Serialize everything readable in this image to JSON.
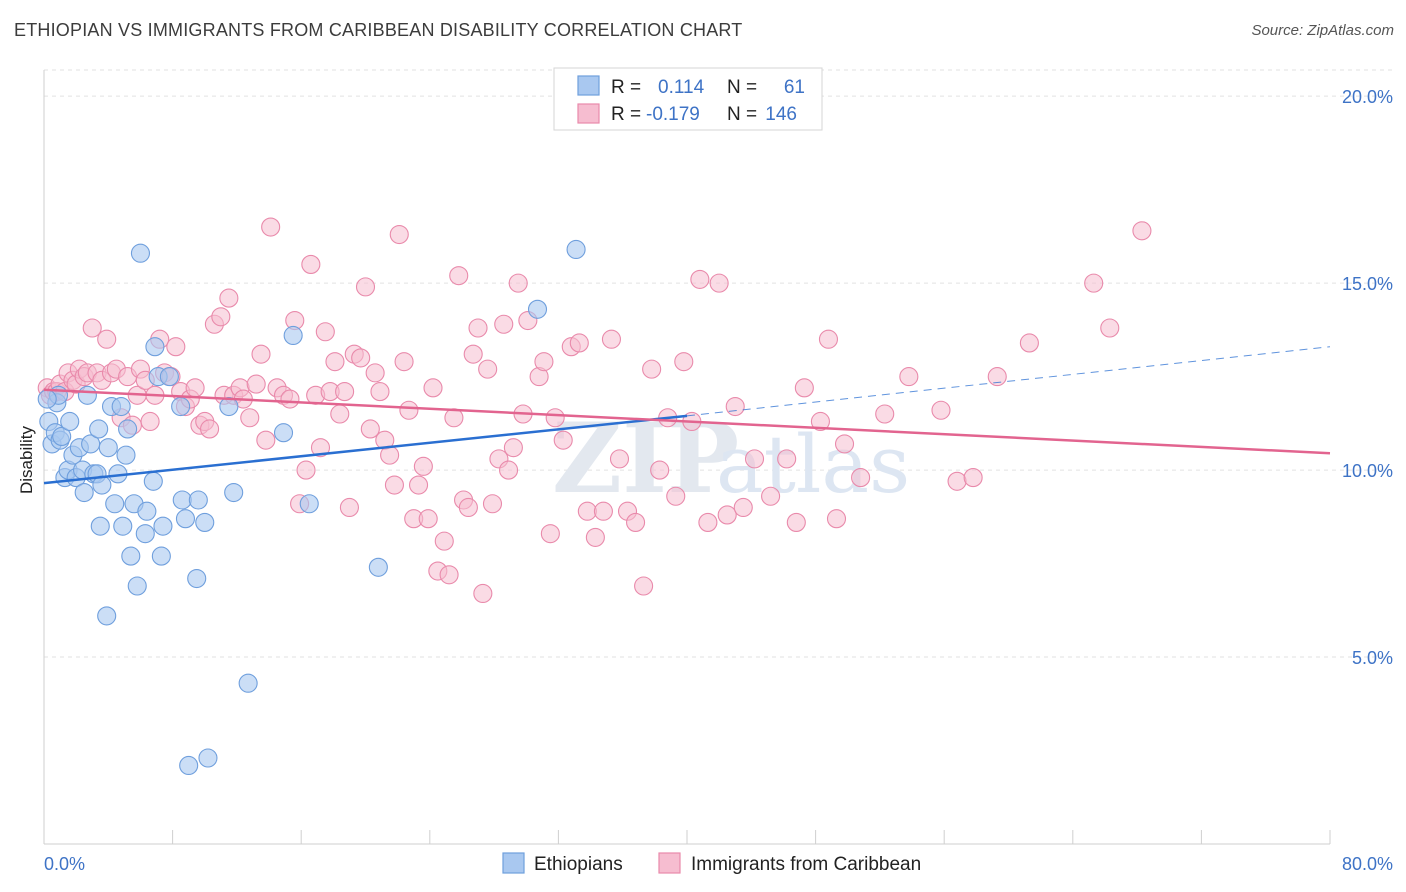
{
  "title": "ETHIOPIAN VS IMMIGRANTS FROM CARIBBEAN DISABILITY CORRELATION CHART",
  "source": "Source: ZipAtlas.com",
  "watermark": {
    "part1": "ZIP",
    "part2": "atlas"
  },
  "colors": {
    "ethiopians_fill": "#a9c8f0",
    "ethiopians_stroke": "#6f9fdd",
    "ethiopians_line": "#2a6fd1",
    "caribbean_fill": "#f6bdd0",
    "caribbean_stroke": "#e98aab",
    "caribbean_line": "#e2648f",
    "grid": "#e2e2e2",
    "tick_text": "#3e73c6"
  },
  "legend": {
    "row1": {
      "r_label": "R =",
      "r_value": "0.114",
      "n_label": "N =",
      "n_value": "61"
    },
    "row2": {
      "r_label": "R =",
      "r_value": "-0.179",
      "n_label": "N =",
      "n_value": "146"
    }
  },
  "chart_data": {
    "type": "scatter",
    "title": "ETHIOPIAN VS IMMIGRANTS FROM CARIBBEAN DISABILITY CORRELATION CHART",
    "xlabel": "",
    "ylabel": "Disability",
    "xlim": [
      0,
      80
    ],
    "ylim": [
      0,
      20.7
    ],
    "x_tick_labels": [
      "0.0%",
      "80.0%"
    ],
    "y_ticks": [
      5,
      10,
      15,
      20
    ],
    "y_tick_labels": [
      "5.0%",
      "10.0%",
      "15.0%",
      "20.0%"
    ],
    "grid": true,
    "legend_position": "top-center",
    "series": [
      {
        "name": "Ethiopians",
        "color": "#a9c8f0",
        "trend": {
          "x0": 0,
          "y0": 9.65,
          "x1": 40,
          "y1": 11.45,
          "dash_to_x": 80,
          "dash_to_y": 13.3
        },
        "points": [
          [
            0.3,
            11.3
          ],
          [
            0.5,
            10.7
          ],
          [
            0.7,
            11.0
          ],
          [
            0.8,
            11.8
          ],
          [
            0.9,
            12.0
          ],
          [
            1.0,
            10.8
          ],
          [
            1.1,
            10.9
          ],
          [
            1.3,
            9.8
          ],
          [
            1.5,
            10.0
          ],
          [
            1.6,
            11.3
          ],
          [
            1.8,
            10.4
          ],
          [
            2.0,
            9.8
          ],
          [
            2.2,
            10.6
          ],
          [
            2.4,
            10.0
          ],
          [
            2.5,
            9.4
          ],
          [
            2.7,
            12.0
          ],
          [
            2.9,
            10.7
          ],
          [
            3.1,
            9.9
          ],
          [
            3.3,
            9.9
          ],
          [
            3.4,
            11.1
          ],
          [
            3.5,
            8.5
          ],
          [
            3.6,
            9.6
          ],
          [
            3.9,
            6.1
          ],
          [
            4.0,
            10.6
          ],
          [
            4.2,
            11.7
          ],
          [
            4.4,
            9.1
          ],
          [
            4.6,
            9.9
          ],
          [
            4.8,
            11.7
          ],
          [
            4.9,
            8.5
          ],
          [
            5.1,
            10.4
          ],
          [
            5.2,
            11.1
          ],
          [
            5.4,
            7.7
          ],
          [
            5.6,
            9.1
          ],
          [
            5.8,
            6.9
          ],
          [
            6.0,
            15.8
          ],
          [
            6.3,
            8.3
          ],
          [
            6.4,
            8.9
          ],
          [
            6.8,
            9.7
          ],
          [
            6.9,
            13.3
          ],
          [
            7.1,
            12.5
          ],
          [
            7.3,
            7.7
          ],
          [
            7.4,
            8.5
          ],
          [
            7.8,
            12.5
          ],
          [
            8.5,
            11.7
          ],
          [
            8.6,
            9.2
          ],
          [
            8.8,
            8.7
          ],
          [
            9.0,
            2.1
          ],
          [
            9.5,
            7.1
          ],
          [
            9.6,
            9.2
          ],
          [
            10.0,
            8.6
          ],
          [
            10.2,
            2.3
          ],
          [
            11.5,
            11.7
          ],
          [
            11.8,
            9.4
          ],
          [
            12.7,
            4.3
          ],
          [
            14.9,
            11.0
          ],
          [
            15.5,
            13.6
          ],
          [
            16.5,
            9.1
          ],
          [
            20.8,
            7.4
          ],
          [
            30.7,
            14.3
          ],
          [
            33.1,
            15.9
          ],
          [
            0.2,
            11.9
          ]
        ]
      },
      {
        "name": "Immigrants from Caribbean",
        "color": "#f6bdd0",
        "trend": {
          "x0": 0,
          "y0": 12.15,
          "x1": 80,
          "y1": 10.45
        },
        "points": [
          [
            0.2,
            12.2
          ],
          [
            0.4,
            12.0
          ],
          [
            0.6,
            12.1
          ],
          [
            0.8,
            12.1
          ],
          [
            1.0,
            12.3
          ],
          [
            1.3,
            12.1
          ],
          [
            1.5,
            12.6
          ],
          [
            1.8,
            12.4
          ],
          [
            2.0,
            12.3
          ],
          [
            2.2,
            12.7
          ],
          [
            2.5,
            12.5
          ],
          [
            2.7,
            12.6
          ],
          [
            3.0,
            13.8
          ],
          [
            3.3,
            12.6
          ],
          [
            3.6,
            12.4
          ],
          [
            3.9,
            13.5
          ],
          [
            4.2,
            12.6
          ],
          [
            4.5,
            12.7
          ],
          [
            4.8,
            11.4
          ],
          [
            5.2,
            12.5
          ],
          [
            5.5,
            11.2
          ],
          [
            5.8,
            12.0
          ],
          [
            6.0,
            12.7
          ],
          [
            6.3,
            12.4
          ],
          [
            6.6,
            11.3
          ],
          [
            6.9,
            12.0
          ],
          [
            7.2,
            13.5
          ],
          [
            7.5,
            12.6
          ],
          [
            7.9,
            12.5
          ],
          [
            8.2,
            13.3
          ],
          [
            8.5,
            12.1
          ],
          [
            8.8,
            11.7
          ],
          [
            9.1,
            11.9
          ],
          [
            9.4,
            12.2
          ],
          [
            9.7,
            11.2
          ],
          [
            10.0,
            11.3
          ],
          [
            10.3,
            11.1
          ],
          [
            10.6,
            13.9
          ],
          [
            11.0,
            14.1
          ],
          [
            11.2,
            12.0
          ],
          [
            11.5,
            14.6
          ],
          [
            11.8,
            12.0
          ],
          [
            12.2,
            12.2
          ],
          [
            12.4,
            11.9
          ],
          [
            12.8,
            11.4
          ],
          [
            13.2,
            12.3
          ],
          [
            13.5,
            13.1
          ],
          [
            13.8,
            10.8
          ],
          [
            14.1,
            16.5
          ],
          [
            14.5,
            12.2
          ],
          [
            14.9,
            12.0
          ],
          [
            15.3,
            11.9
          ],
          [
            15.6,
            14.0
          ],
          [
            15.9,
            9.1
          ],
          [
            16.3,
            10.0
          ],
          [
            16.6,
            15.5
          ],
          [
            16.9,
            12.0
          ],
          [
            17.2,
            10.6
          ],
          [
            17.5,
            13.7
          ],
          [
            17.8,
            12.1
          ],
          [
            18.1,
            12.9
          ],
          [
            18.4,
            11.5
          ],
          [
            18.7,
            12.1
          ],
          [
            19.0,
            9.0
          ],
          [
            19.3,
            13.1
          ],
          [
            19.7,
            13.0
          ],
          [
            20.0,
            14.9
          ],
          [
            20.3,
            11.1
          ],
          [
            20.6,
            12.6
          ],
          [
            20.9,
            12.1
          ],
          [
            21.2,
            10.8
          ],
          [
            21.5,
            10.4
          ],
          [
            21.8,
            9.6
          ],
          [
            22.1,
            16.3
          ],
          [
            22.4,
            12.9
          ],
          [
            22.7,
            11.6
          ],
          [
            23.0,
            8.7
          ],
          [
            23.3,
            9.6
          ],
          [
            23.6,
            10.1
          ],
          [
            23.9,
            8.7
          ],
          [
            24.2,
            12.2
          ],
          [
            24.5,
            7.3
          ],
          [
            24.9,
            8.1
          ],
          [
            25.2,
            7.2
          ],
          [
            25.5,
            11.4
          ],
          [
            25.8,
            15.2
          ],
          [
            26.1,
            9.2
          ],
          [
            26.4,
            9.0
          ],
          [
            26.7,
            13.1
          ],
          [
            27.0,
            13.8
          ],
          [
            27.3,
            6.7
          ],
          [
            27.6,
            12.7
          ],
          [
            27.9,
            9.1
          ],
          [
            28.3,
            10.3
          ],
          [
            28.6,
            13.9
          ],
          [
            28.9,
            10.0
          ],
          [
            29.2,
            10.6
          ],
          [
            29.5,
            15.0
          ],
          [
            29.8,
            11.5
          ],
          [
            30.1,
            14.0
          ],
          [
            30.8,
            12.5
          ],
          [
            31.1,
            12.9
          ],
          [
            31.5,
            8.3
          ],
          [
            31.8,
            11.4
          ],
          [
            32.3,
            10.8
          ],
          [
            32.8,
            13.3
          ],
          [
            33.3,
            13.4
          ],
          [
            33.8,
            8.9
          ],
          [
            34.3,
            8.2
          ],
          [
            34.8,
            8.9
          ],
          [
            35.3,
            13.5
          ],
          [
            35.8,
            10.3
          ],
          [
            36.3,
            8.9
          ],
          [
            36.8,
            8.6
          ],
          [
            37.3,
            6.9
          ],
          [
            37.8,
            12.7
          ],
          [
            38.3,
            10.0
          ],
          [
            38.8,
            11.4
          ],
          [
            39.3,
            9.3
          ],
          [
            39.8,
            12.9
          ],
          [
            40.3,
            11.3
          ],
          [
            40.8,
            15.1
          ],
          [
            41.3,
            8.6
          ],
          [
            42.0,
            15.0
          ],
          [
            42.5,
            8.8
          ],
          [
            43.0,
            11.7
          ],
          [
            43.5,
            9.0
          ],
          [
            44.2,
            10.3
          ],
          [
            45.2,
            9.3
          ],
          [
            46.2,
            10.3
          ],
          [
            46.8,
            8.6
          ],
          [
            47.3,
            12.2
          ],
          [
            48.3,
            11.3
          ],
          [
            48.8,
            13.5
          ],
          [
            49.3,
            8.7
          ],
          [
            49.8,
            10.7
          ],
          [
            50.8,
            9.8
          ],
          [
            52.3,
            11.5
          ],
          [
            53.8,
            12.5
          ],
          [
            55.8,
            11.6
          ],
          [
            56.8,
            9.7
          ],
          [
            57.8,
            9.8
          ],
          [
            59.3,
            12.5
          ],
          [
            61.3,
            13.4
          ],
          [
            65.3,
            15.0
          ],
          [
            66.3,
            13.8
          ],
          [
            68.3,
            16.4
          ]
        ]
      }
    ]
  },
  "bottom_legend": [
    {
      "label": "Ethiopians"
    },
    {
      "label": "Immigrants from Caribbean"
    }
  ]
}
